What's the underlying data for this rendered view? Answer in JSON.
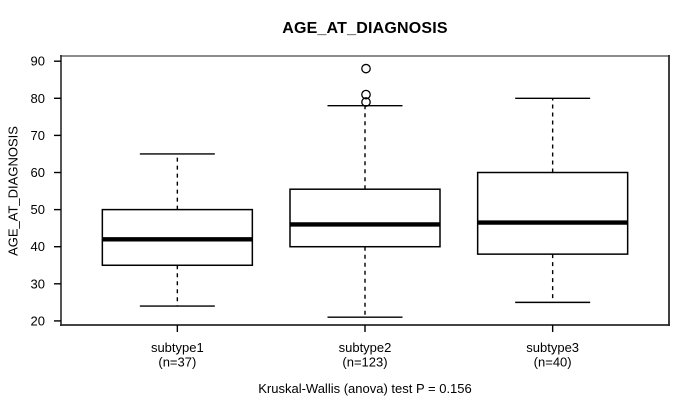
{
  "chart_data": {
    "type": "boxplot",
    "title": "AGE_AT_DIAGNOSIS",
    "ylabel": "AGE_AT_DIAGNOSIS",
    "caption": "Kruskal-Wallis (anova) test P = 0.156",
    "ylim": [
      18.9,
      91.4
    ],
    "yticks": [
      20,
      30,
      40,
      50,
      60,
      70,
      80,
      90
    ],
    "grid": false,
    "legend": null,
    "groups": [
      {
        "label": "subtype1",
        "n_label": "(n=37)",
        "whisker_low": 24,
        "q1": 35,
        "median": 42,
        "q3": 50,
        "whisker_high": 65,
        "outliers": []
      },
      {
        "label": "subtype2",
        "n_label": "(n=123)",
        "whisker_low": 21,
        "q1": 40,
        "median": 46,
        "q3": 55.5,
        "whisker_high": 78,
        "outliers": [
          79,
          81,
          88
        ]
      },
      {
        "label": "subtype3",
        "n_label": "(n=40)",
        "whisker_low": 25,
        "q1": 38,
        "median": 46.5,
        "q3": 60,
        "whisker_high": 80,
        "outliers": []
      }
    ],
    "colors": {
      "line": "#000000",
      "text": "#000000",
      "box_fill": "#ffffff",
      "frame_top": "#8c8c8c",
      "frame_side": "#2a2a2a"
    }
  }
}
